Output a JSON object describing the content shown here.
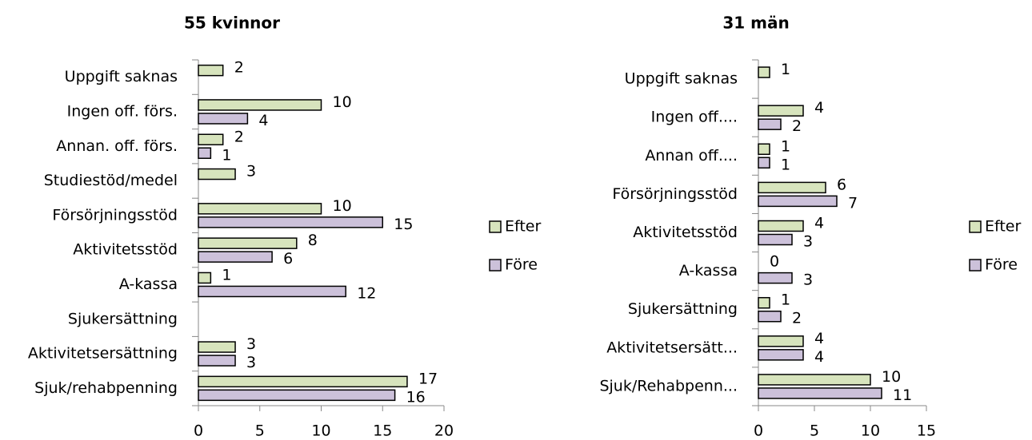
{
  "chart_data": [
    {
      "type": "bar",
      "orientation": "horizontal",
      "title": "55 kvinnor",
      "categories": [
        "Uppgift saknas",
        "Ingen off. förs.",
        "Annan. off. förs.",
        "Studiestöd/medel",
        "Försörjningsstöd",
        "Aktivitetsstöd",
        "A-kassa",
        "Sjukersättning",
        "Aktivitetsersättning",
        "Sjuk/rehabpenning"
      ],
      "series": [
        {
          "name": "Efter",
          "color": "#d7e4bd",
          "values": [
            2,
            10,
            2,
            3,
            10,
            8,
            1,
            null,
            3,
            17
          ]
        },
        {
          "name": "Före",
          "color": "#ccc1da",
          "values": [
            null,
            4,
            1,
            null,
            15,
            6,
            12,
            null,
            3,
            16
          ]
        }
      ],
      "xlim": [
        0,
        20
      ],
      "xticks": [
        0,
        5,
        10,
        15,
        20
      ],
      "legend": "right"
    },
    {
      "type": "bar",
      "orientation": "horizontal",
      "title": "31 män",
      "categories": [
        "Uppgift saknas",
        "Ingen off....",
        "Annan off....",
        "Försörjningsstöd",
        "Aktivitetsstöd",
        "A-kassa",
        "Sjukersättning",
        "Aktivitetsersätt...",
        "Sjuk/Rehabpenn..."
      ],
      "series": [
        {
          "name": "Efter",
          "color": "#d7e4bd",
          "values": [
            1,
            4,
            1,
            6,
            4,
            0,
            1,
            4,
            10
          ]
        },
        {
          "name": "Före",
          "color": "#ccc1da",
          "values": [
            null,
            2,
            1,
            7,
            3,
            3,
            2,
            4,
            11
          ]
        }
      ],
      "xlim": [
        0,
        15
      ],
      "xticks": [
        0,
        5,
        10,
        15
      ],
      "legend": "right"
    }
  ]
}
